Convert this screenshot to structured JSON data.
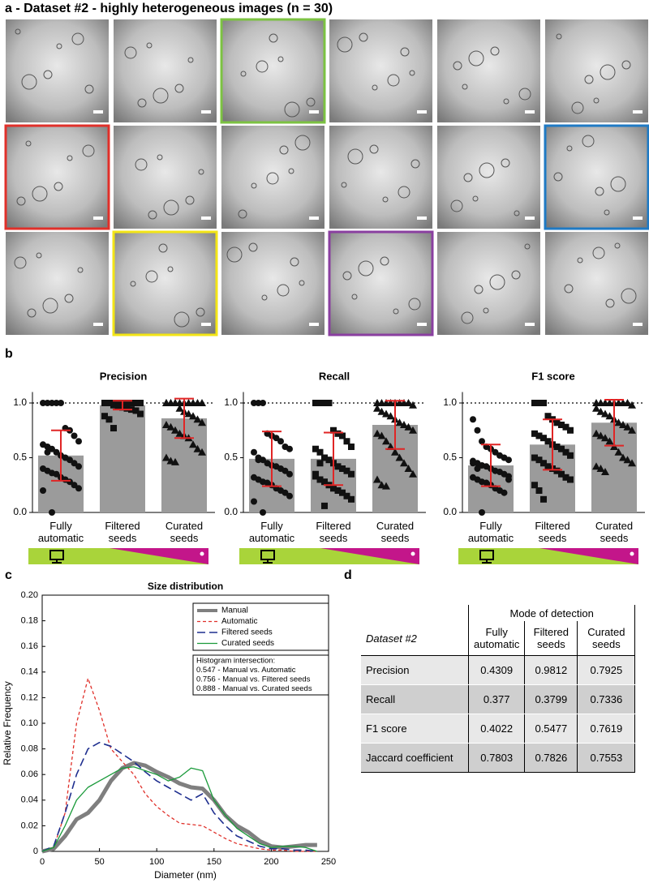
{
  "panel_a": {
    "title": "a - Dataset #2 - highly heterogeneous images (n = 30)"
  },
  "panel_b_label": "b",
  "panel_c_label": "c",
  "panel_d_label": "d",
  "chart_data": [
    {
      "type": "bar",
      "title": "Precision",
      "categories": [
        "Fully automatic",
        "Filtered seeds",
        "Curated seeds"
      ],
      "values": [
        0.52,
        0.98,
        0.86
      ],
      "errors": [
        0.23,
        0.04,
        0.18
      ],
      "points": [
        [
          1,
          1,
          1,
          1,
          1,
          0.77,
          0.75,
          0.7,
          0.65,
          0.62,
          0.6,
          0.58,
          0.55,
          0.52,
          0.5,
          0.48,
          0.45,
          0.42,
          0.4,
          0.38,
          0.36,
          0.35,
          0.32,
          0.3,
          0.28,
          0.25,
          0.22,
          0.2,
          0.55,
          0
        ],
        [
          1,
          1,
          1,
          1,
          1,
          1,
          1,
          1,
          1,
          1,
          1,
          1,
          1,
          1,
          1,
          1,
          1,
          1,
          1,
          1,
          0.98,
          0.97,
          0.96,
          0.95,
          0.94,
          0.93,
          0.9,
          0.88,
          0.85,
          0.77
        ],
        [
          1,
          1,
          1,
          1,
          1,
          1,
          1,
          1,
          1,
          1,
          1,
          1,
          0.95,
          0.92,
          0.9,
          0.88,
          0.85,
          0.82,
          0.8,
          0.78,
          0.75,
          0.72,
          0.7,
          0.68,
          0.62,
          0.58,
          0.55,
          0.5,
          0.47,
          0.46
        ]
      ],
      "markers": [
        "circle",
        "square",
        "triangle"
      ],
      "color": "#9b9b9b",
      "error_color": "#e02525",
      "point_color": "#111111",
      "ylim": [
        0,
        1.1
      ],
      "yticks": [
        {
          "value": 0,
          "label": "0.0"
        },
        0.5,
        {
          "value": 1,
          "label": "1.0"
        }
      ],
      "reference_line": 1
    },
    {
      "type": "bar",
      "title": "Recall",
      "categories": [
        "Fully automatic",
        "Filtered seeds",
        "Curated seeds"
      ],
      "values": [
        0.49,
        0.49,
        0.8
      ],
      "errors": [
        0.25,
        0.24,
        0.22
      ],
      "points": [
        [
          1,
          1,
          1,
          0.72,
          0.7,
          0.68,
          0.65,
          0.6,
          0.58,
          0.55,
          0.5,
          0.48,
          0.45,
          0.43,
          0.42,
          0.4,
          0.38,
          0.35,
          0.32,
          0.3,
          0.28,
          0.27,
          0.25,
          0.22,
          0.2,
          0.18,
          0.15,
          0.1,
          0.48,
          0
        ],
        [
          1,
          1,
          1,
          1,
          0.75,
          0.72,
          0.7,
          0.65,
          0.6,
          0.58,
          0.55,
          0.5,
          0.48,
          0.45,
          0.42,
          0.4,
          0.38,
          0.35,
          0.33,
          0.3,
          0.28,
          0.25,
          0.22,
          0.2,
          0.18,
          0.15,
          0.12,
          0.35,
          0.45,
          0.06
        ],
        [
          1,
          1,
          1,
          1,
          1,
          1,
          1,
          1,
          0.98,
          0.95,
          0.92,
          0.9,
          0.88,
          0.85,
          0.82,
          0.8,
          0.78,
          0.75,
          0.72,
          0.7,
          0.65,
          0.6,
          0.55,
          0.5,
          0.45,
          0.4,
          0.35,
          0.3,
          0.25,
          0.24
        ]
      ],
      "markers": [
        "circle",
        "square",
        "triangle"
      ],
      "color": "#9b9b9b",
      "error_color": "#e02525",
      "point_color": "#111111",
      "ylim": [
        0,
        1.1
      ],
      "yticks": [
        {
          "value": 0,
          "label": "0.0"
        },
        0.5,
        {
          "value": 1,
          "label": "1.0"
        }
      ],
      "reference_line": 1
    },
    {
      "type": "bar",
      "title": "F1 score",
      "categories": [
        "Fully automatic",
        "Filtered seeds",
        "Curated seeds"
      ],
      "values": [
        0.43,
        0.62,
        0.82
      ],
      "errors": [
        0.19,
        0.23,
        0.21
      ],
      "points": [
        [
          0.85,
          0.75,
          0.65,
          0.6,
          0.58,
          0.55,
          0.52,
          0.5,
          0.48,
          0.47,
          0.45,
          0.43,
          0.42,
          0.4,
          0.38,
          0.37,
          0.35,
          0.33,
          0.32,
          0.3,
          0.28,
          0.27,
          0.25,
          0.22,
          0.2,
          0.18,
          0.3,
          0.45,
          0.4,
          0
        ],
        [
          1,
          1,
          1,
          0.88,
          0.85,
          0.82,
          0.8,
          0.78,
          0.75,
          0.72,
          0.7,
          0.68,
          0.65,
          0.62,
          0.6,
          0.58,
          0.55,
          0.52,
          0.5,
          0.48,
          0.45,
          0.42,
          0.4,
          0.38,
          0.35,
          0.32,
          0.3,
          0.25,
          0.2,
          0.12
        ],
        [
          1,
          1,
          1,
          1,
          1,
          1,
          1,
          1,
          0.98,
          0.95,
          0.92,
          0.9,
          0.88,
          0.85,
          0.82,
          0.8,
          0.78,
          0.75,
          0.72,
          0.7,
          0.68,
          0.65,
          0.6,
          0.55,
          0.5,
          0.48,
          0.45,
          0.42,
          0.4,
          0.37
        ]
      ],
      "markers": [
        "circle",
        "square",
        "triangle"
      ],
      "color": "#9b9b9b",
      "error_color": "#e02525",
      "point_color": "#111111",
      "ylim": [
        0,
        1.1
      ],
      "yticks": [
        {
          "value": 0,
          "label": "0.0"
        },
        0.5,
        {
          "value": 1,
          "label": "1.0"
        }
      ],
      "reference_line": 1
    },
    {
      "type": "line",
      "title": "Size distribution",
      "x_label": "Diameter  (nm)",
      "y_label": "Relative Frequency",
      "x": [
        0,
        10,
        20,
        30,
        40,
        50,
        60,
        70,
        80,
        90,
        100,
        110,
        120,
        130,
        140,
        150,
        160,
        170,
        180,
        190,
        200,
        210,
        220,
        230,
        240
      ],
      "series": [
        {
          "name": "Manual",
          "color": "#7f7f7f",
          "width": 5,
          "dash": "none",
          "values": [
            0,
            0.002,
            0.012,
            0.025,
            0.03,
            0.04,
            0.055,
            0.065,
            0.069,
            0.067,
            0.062,
            0.058,
            0.053,
            0.05,
            0.049,
            0.04,
            0.028,
            0.02,
            0.015,
            0.008,
            0.004,
            0.003,
            0.004,
            0.005,
            0.005
          ]
        },
        {
          "name": "Automatic",
          "color": "#e0302a",
          "width": 1.3,
          "dash": "4 3",
          "values": [
            0,
            0.003,
            0.03,
            0.1,
            0.135,
            0.11,
            0.08,
            0.07,
            0.06,
            0.045,
            0.035,
            0.028,
            0.022,
            0.021,
            0.02,
            0.015,
            0.01,
            0.006,
            0.004,
            0.002,
            0.001,
            0.001,
            0,
            0,
            0
          ]
        },
        {
          "name": "Filtered seeds",
          "color": "#1f2f8f",
          "width": 1.6,
          "dash": "10 5",
          "values": [
            0,
            0.004,
            0.03,
            0.06,
            0.08,
            0.085,
            0.082,
            0.076,
            0.07,
            0.062,
            0.055,
            0.05,
            0.045,
            0.04,
            0.045,
            0.03,
            0.02,
            0.012,
            0.008,
            0.004,
            0.002,
            0.002,
            0.001,
            0.001,
            0
          ]
        },
        {
          "name": "Curated seeds",
          "color": "#1a9a3a",
          "width": 1.3,
          "dash": "none",
          "values": [
            0,
            0.003,
            0.02,
            0.04,
            0.05,
            0.055,
            0.06,
            0.065,
            0.066,
            0.063,
            0.06,
            0.055,
            0.058,
            0.065,
            0.063,
            0.04,
            0.028,
            0.018,
            0.012,
            0.006,
            0.003,
            0.004,
            0.004,
            0.003,
            0
          ]
        }
      ],
      "annotations": [
        "Histogram intersection:",
        "0.547 - Manual vs. Automatic",
        "0.756 - Manual vs. Filtered seeds",
        "0.888 - Manual vs. Curated seeds"
      ],
      "xlim": [
        0,
        250
      ],
      "xticks": [
        0,
        50,
        100,
        150,
        200,
        250
      ],
      "ylim": [
        0,
        0.2
      ],
      "yticks": [
        0,
        0.02,
        0.04,
        0.06,
        0.08,
        {
          "value": 0.1,
          "label": "0.10"
        },
        0.12,
        0.14,
        0.16,
        0.18,
        {
          "value": 0.2,
          "label": "0.20"
        }
      ]
    }
  ],
  "table": {
    "corner": "Dataset #2",
    "group_header": "Mode of detection",
    "columns": [
      "Fully automatic",
      "Filtered seeds",
      "Curated seeds"
    ],
    "rows": [
      [
        "Precision",
        0.4309,
        0.9812,
        0.7925
      ],
      [
        "Recall",
        0.377,
        0.3799,
        0.7336
      ],
      [
        "F1 score",
        0.4022,
        0.5477,
        0.7619
      ],
      [
        "Jaccard coefficient",
        0.7803,
        0.7826,
        0.7553
      ]
    ]
  }
}
